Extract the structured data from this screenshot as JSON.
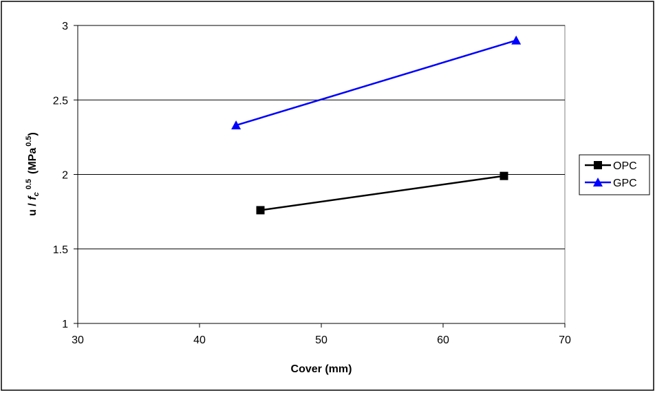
{
  "chart_data": {
    "type": "line",
    "title": "",
    "xlabel": "Cover (mm)",
    "ylabel_main": "u / ",
    "ylabel_fc": "f",
    "ylabel_fc_sub": "c",
    "ylabel_exp": "0.5",
    "ylabel_units": "(MPa",
    "ylabel_units_exp": "0.5",
    "ylabel_units_close": ")",
    "xlim": [
      30,
      70
    ],
    "ylim": [
      1,
      3
    ],
    "xticks": [
      30,
      40,
      50,
      60,
      70
    ],
    "yticks": [
      1,
      1.5,
      2,
      2.5,
      3
    ],
    "ytick_labels": [
      "1",
      "1.5",
      "2",
      "2.5",
      "3"
    ],
    "grid": "horizontal",
    "legend_position": "right",
    "series": [
      {
        "name": "OPC",
        "color": "#000000",
        "marker": "square",
        "x": [
          45,
          65
        ],
        "y": [
          1.76,
          1.99
        ]
      },
      {
        "name": "GPC",
        "color": "#0000ff",
        "marker": "triangle",
        "x": [
          43,
          66
        ],
        "y": [
          2.33,
          2.9
        ]
      }
    ]
  }
}
